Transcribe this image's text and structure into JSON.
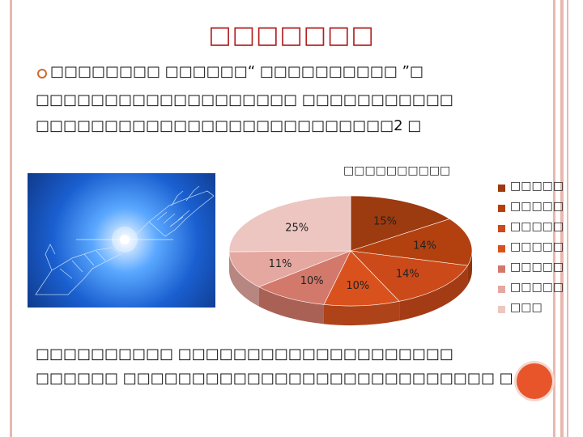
{
  "slide": {
    "title": "□□□□□□□",
    "bullet_line_1": "□□□□□□□□ □□□□□□“ □□□□□□□□□□ ”□",
    "body_line_2": "□□□□□□□□□□□□□□□□□□□ □□□□□□□□□□□",
    "body_line_3": "□□□□□□□□□□□□□□□□□□□□□□□□□□2 □",
    "footer_line_1": "□□□□□□□□□□ □□□□□□□□□□□□□□□□□□□□",
    "footer_line_2": "□□□□□□ □□□□□□□□□□□□□□□□□□□□□□□□□□□ □"
  },
  "image": {
    "icon": "robot-hand-photo"
  },
  "chart_data": {
    "type": "pie",
    "title": "□□□□□□□□□□",
    "categories": [
      "□□□□□",
      "□□□□□",
      "□□□□□",
      "□□□□□",
      "□□□□□",
      "□□□□□",
      "□□□"
    ],
    "values": [
      15,
      14,
      14,
      10,
      10,
      11,
      25
    ],
    "labels": [
      "15%",
      "14%",
      "14%",
      "10%",
      "10%",
      "11%",
      "25%"
    ],
    "colors": [
      "#9c3a10",
      "#b3410f",
      "#cc4a1a",
      "#d9521e",
      "#d3796b",
      "#e5a8a0",
      "#edc6c1"
    ],
    "legend": "right",
    "three_d": true
  },
  "decor": {
    "accent": "#e8552a",
    "frame": "#e8b8b0",
    "title_color": "#b22020"
  }
}
